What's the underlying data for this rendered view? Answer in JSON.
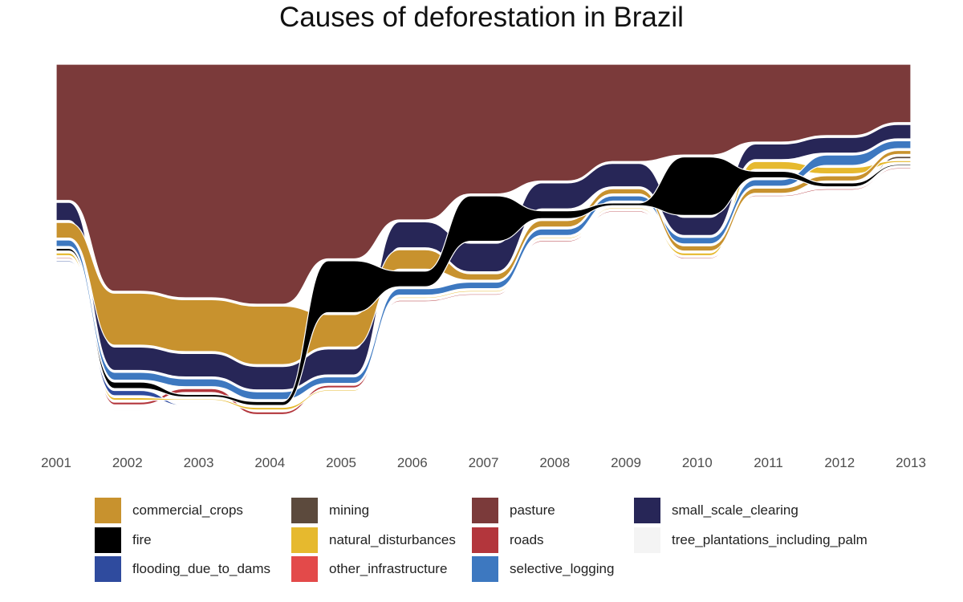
{
  "chart_data": {
    "type": "bump-area",
    "title": "Causes of deforestation in Brazil",
    "x": [
      "2001",
      "2002",
      "2003",
      "2004",
      "2005",
      "2006",
      "2007",
      "2008",
      "2009",
      "2010",
      "2011",
      "2012",
      "2013"
    ],
    "series": [
      {
        "name": "pasture",
        "color": "#7b3a3a",
        "values": [
          105,
          175,
          180,
          185,
          150,
          120,
          100,
          90,
          75,
          70,
          60,
          55,
          45
        ]
      },
      {
        "name": "commercial_crops",
        "color": "#c8922e",
        "values": [
          12,
          40,
          40,
          45,
          25,
          15,
          5,
          5,
          4,
          4,
          4,
          4,
          3
        ]
      },
      {
        "name": "small_scale_clearing",
        "color": "#272657",
        "values": [
          14,
          18,
          18,
          18,
          20,
          20,
          22,
          20,
          18,
          14,
          12,
          12,
          11
        ]
      },
      {
        "name": "fire",
        "color": "#000000",
        "values": [
          2,
          5,
          2,
          3,
          40,
          12,
          35,
          6,
          2,
          45,
          5,
          3,
          1
        ]
      },
      {
        "name": "selective_logging",
        "color": "#3d78c0",
        "values": [
          5,
          6,
          6,
          6,
          5,
          5,
          5,
          5,
          4,
          5,
          5,
          8,
          6
        ]
      },
      {
        "name": "natural_disturbances",
        "color": "#e6b92e",
        "values": [
          2,
          2,
          1,
          2,
          1,
          1,
          1,
          1,
          1,
          2,
          6,
          5,
          1.5
        ]
      },
      {
        "name": "roads",
        "color": "#b3363c",
        "values": [
          1,
          2,
          3,
          2,
          2,
          1,
          1,
          1,
          1,
          1,
          1,
          1,
          1
        ]
      },
      {
        "name": "mining",
        "color": "#5c4a3d",
        "values": [
          0.5,
          0.6,
          0.5,
          0.5,
          0.5,
          0.5,
          0.5,
          0.5,
          0.5,
          0.5,
          0.5,
          0.5,
          1.8
        ]
      },
      {
        "name": "flooding_due_to_dams",
        "color": "#2f4b9e",
        "values": [
          1,
          4,
          0.6,
          0.5,
          0.4,
          0.4,
          0.4,
          0.4,
          0.4,
          0.3,
          0.3,
          0.3,
          0.3
        ]
      },
      {
        "name": "other_infrastructure",
        "color": "#e34a4a",
        "values": [
          0.6,
          0.8,
          0.6,
          0.6,
          0.6,
          0.5,
          0.5,
          0.5,
          0.5,
          0.5,
          0.5,
          0.5,
          0.5
        ]
      },
      {
        "name": "tree_plantations_including_palm",
        "color": "#f4f4f4",
        "values": [
          0.6,
          0.8,
          0.8,
          0.8,
          0.7,
          0.6,
          0.6,
          0.6,
          0.6,
          0.6,
          0.6,
          0.6,
          0.6
        ]
      }
    ],
    "legend": {
      "position": "bottom",
      "columns": [
        [
          "commercial_crops",
          "fire",
          "flooding_due_to_dams"
        ],
        [
          "mining",
          "natural_disturbances",
          "other_infrastructure"
        ],
        [
          "pasture",
          "roads",
          "selective_logging"
        ],
        [
          "small_scale_clearing",
          "tree_plantations_including_palm"
        ]
      ]
    },
    "grid": false,
    "xlabel": "",
    "ylabel": ""
  }
}
